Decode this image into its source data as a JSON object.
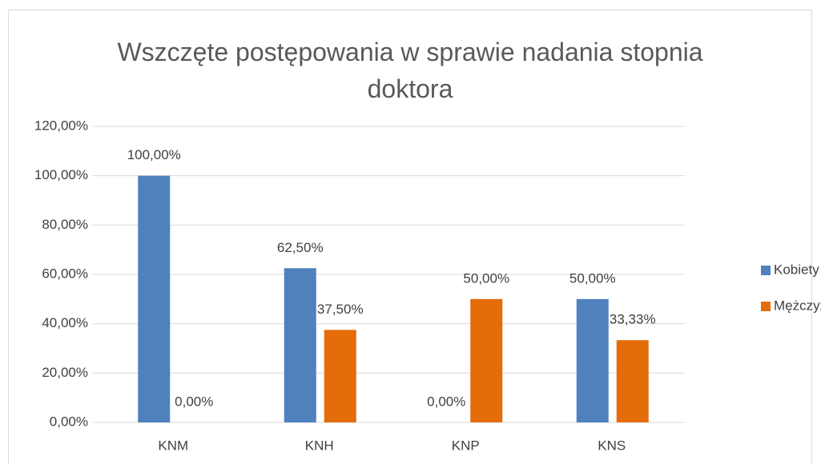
{
  "chart_data": {
    "type": "bar",
    "title": "Wszczęte postępowania w sprawie nadania stopnia doktora",
    "categories": [
      "KNM",
      "KNH",
      "KNP",
      "KNS"
    ],
    "series": [
      {
        "name": "Kobiety",
        "color": "#4f81bd",
        "values": [
          100,
          62.5,
          0,
          50
        ],
        "value_labels": [
          "100,00%",
          "62,50%",
          "0,00%",
          "50,00%"
        ]
      },
      {
        "name": "Mężczyźni",
        "color": "#e46c0a",
        "values": [
          0,
          37.5,
          50,
          33.33
        ],
        "value_labels": [
          "0,00%",
          "37,50%",
          "50,00%",
          "33,33%"
        ]
      }
    ],
    "ylim": [
      0,
      120
    ],
    "yticks": [
      {
        "value": 0,
        "label": "0,00%"
      },
      {
        "value": 20,
        "label": "20,00%"
      },
      {
        "value": 40,
        "label": "40,00%"
      },
      {
        "value": 60,
        "label": "60,00%"
      },
      {
        "value": 80,
        "label": "80,00%"
      },
      {
        "value": 100,
        "label": "100,00%"
      },
      {
        "value": 120,
        "label": "120,00%"
      }
    ],
    "grid": true,
    "legend": "right"
  }
}
